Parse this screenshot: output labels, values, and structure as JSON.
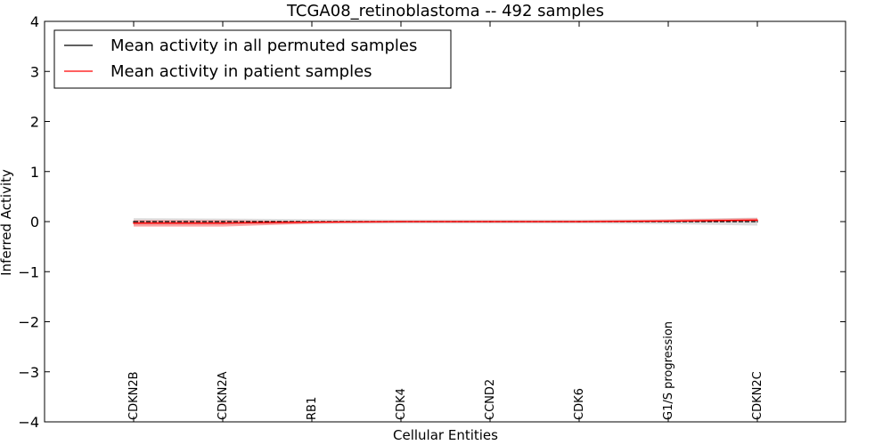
{
  "chart_data": {
    "type": "line",
    "title": "TCGA08_retinoblastoma -- 492 samples",
    "xlabel": "Cellular Entities",
    "ylabel": "Inferred Activity",
    "ylim": [
      -4,
      4
    ],
    "yticks": [
      -4,
      -3,
      -2,
      -1,
      0,
      1,
      2,
      3,
      4
    ],
    "ytick_labels": [
      "−4",
      "−3",
      "−2",
      "−1",
      "0",
      "1",
      "2",
      "3",
      "4"
    ],
    "grid": false,
    "legend_position": "top-left",
    "categories": [
      "CDKN2B",
      "CDKN2A",
      "RB1",
      "CDK4",
      "CCND2",
      "CDK6",
      "G1/S progression",
      "CDKN2C"
    ],
    "series": [
      {
        "name": "Mean activity in all permuted samples",
        "color": "#000000",
        "values": [
          0,
          0,
          0,
          0,
          0,
          0,
          0,
          0
        ],
        "band_lower": [
          -0.08,
          -0.07,
          -0.05,
          -0.04,
          -0.04,
          -0.04,
          -0.05,
          -0.08
        ],
        "band_upper": [
          0.07,
          0.06,
          0.05,
          0.04,
          0.04,
          0.04,
          0.05,
          0.08
        ],
        "band_color": "#bbbbbb"
      },
      {
        "name": "Mean activity in patient samples",
        "color": "#ff0000",
        "values": [
          -0.03,
          -0.03,
          -0.01,
          0.0,
          0.0,
          0.0,
          0.01,
          0.03
        ],
        "band_lower": [
          -0.1,
          -0.1,
          -0.04,
          -0.02,
          -0.02,
          -0.02,
          -0.01,
          0.0
        ],
        "band_upper": [
          0.03,
          0.03,
          0.01,
          0.02,
          0.02,
          0.02,
          0.04,
          0.07
        ],
        "band_color": "#ff6666"
      }
    ]
  }
}
